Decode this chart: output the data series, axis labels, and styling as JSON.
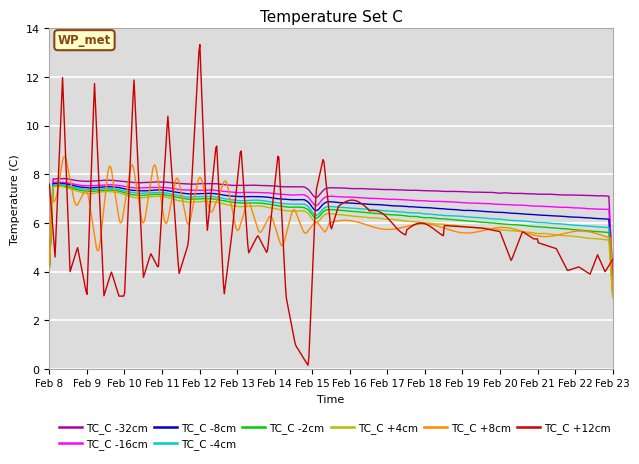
{
  "title": "Temperature Set C",
  "xlabel": "Time",
  "ylabel": "Temperature (C)",
  "ylim": [
    0,
    14
  ],
  "background_color": "#dcdcdc",
  "grid_color": "white",
  "annotation_text": "WP_met",
  "annotation_box_color": "#ffffcc",
  "annotation_border_color": "#8B4513",
  "series_labels": [
    "TC_C -32cm",
    "TC_C -16cm",
    "TC_C -8cm",
    "TC_C -4cm",
    "TC_C -2cm",
    "TC_C +4cm",
    "TC_C +8cm",
    "TC_C +12cm"
  ],
  "series_colors": [
    "#aa00aa",
    "#ff00ff",
    "#0000cc",
    "#00cccc",
    "#00cc00",
    "#bbbb00",
    "#ff8800",
    "#cc0000"
  ],
  "x_tick_labels": [
    "Feb 8",
    "Feb 9",
    "Feb 10",
    "Feb 11",
    "Feb 12",
    "Feb 13",
    "Feb 14",
    "Feb 15",
    "Feb 16",
    "Feb 17",
    "Feb 18",
    "Feb 19",
    "Feb 20",
    "Feb 21",
    "Feb 22",
    "Feb 23"
  ],
  "x_tick_positions": [
    0,
    1,
    2,
    3,
    4,
    5,
    6,
    7,
    8,
    9,
    10,
    11,
    12,
    13,
    14,
    15
  ]
}
